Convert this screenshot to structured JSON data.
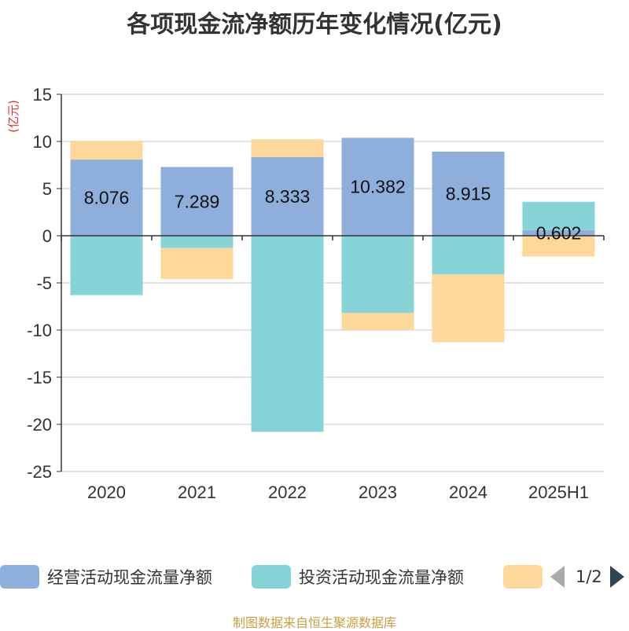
{
  "title": "各项现金流净额历年变化情况(亿元)",
  "source": "制图数据来自恒生聚源数据库",
  "legend": {
    "page": "1/2"
  },
  "colors": {
    "operating": "#8eaedb",
    "investing": "#86d4d8",
    "financing": "#fdd89a",
    "axis": "#333333",
    "grid": "#c8c8c8",
    "unit": "#e0352b"
  },
  "chart_data": {
    "type": "bar",
    "stacked": true,
    "ylabel": "(亿元)",
    "ylim": [
      -25,
      15
    ],
    "yticks": [
      15,
      10,
      5,
      0,
      -5,
      -10,
      -15,
      -20,
      -25
    ],
    "categories": [
      "2020",
      "2021",
      "2022",
      "2023",
      "2024",
      "2025H1"
    ],
    "series": [
      {
        "name": "经营活动现金流量净额",
        "values": [
          8.076,
          7.289,
          8.333,
          10.382,
          8.915,
          0.602
        ],
        "labels": [
          "8.076",
          "7.289",
          "8.333",
          "10.382",
          "8.915",
          "0.602"
        ]
      },
      {
        "name": "投资活动现金流量净额",
        "values": [
          -6.3,
          -1.3,
          -20.8,
          -8.2,
          -4.1,
          3.0
        ]
      },
      {
        "name": "",
        "values": [
          2.0,
          -3.3,
          1.9,
          -1.8,
          -7.2,
          -2.2
        ]
      }
    ],
    "grid": true,
    "legend_position": "bottom"
  }
}
